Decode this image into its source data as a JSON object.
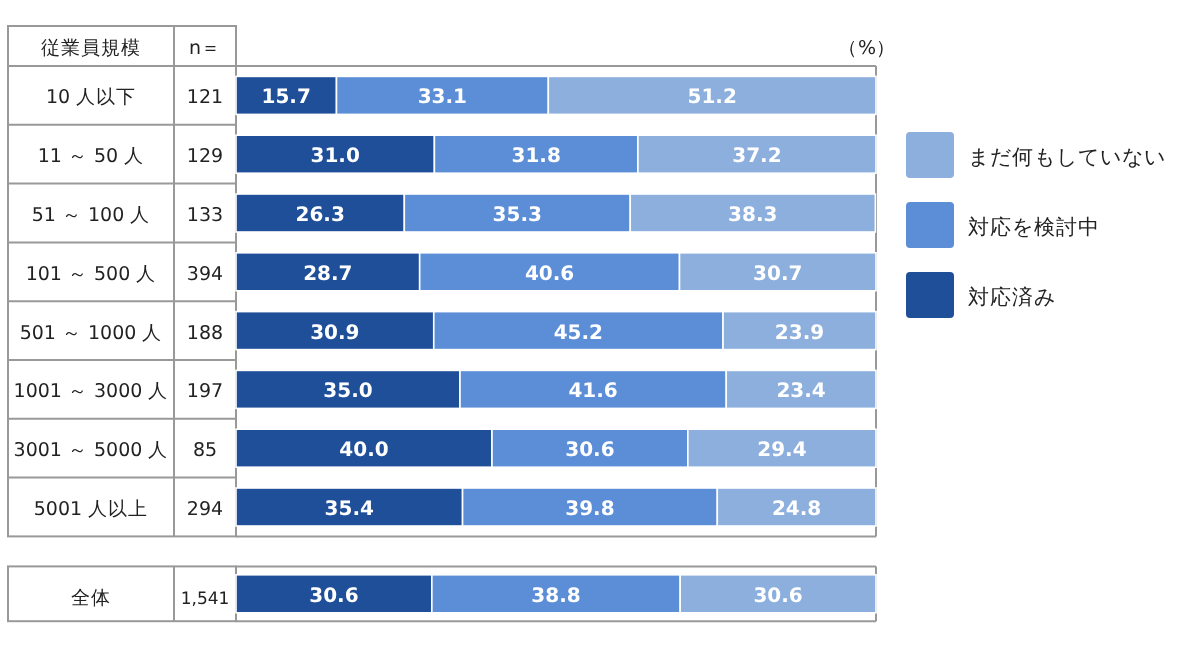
{
  "chart_data": {
    "type": "bar",
    "orientation": "horizontal",
    "stacked": true,
    "legend": "right",
    "xlim": [
      0,
      100
    ],
    "tick_labels": "y",
    "categories": [
      "10 人以下",
      "11 ～ 50 人",
      "51 ～ 100 人",
      "101 ～ 500 人",
      "501 ～ 1000 人",
      "1001 ～ 3000 人",
      "3001 ～ 5000 人",
      "5001 人以上",
      "全体"
    ],
    "series": [
      {
        "name": "対応済み",
        "color": "#1f4f99",
        "values": [
          15.7,
          31.0,
          26.3,
          28.7,
          30.9,
          35.0,
          40.0,
          35.4,
          30.6
        ],
        "value_labels": [
          "15.7",
          "31.0",
          "26.3",
          "28.7",
          "30.9",
          "35.0",
          "40.0",
          "35.4",
          "30.6"
        ]
      },
      {
        "name": "対応を検討中",
        "color": "#5b8ed6",
        "values": [
          33.1,
          31.8,
          35.3,
          40.6,
          45.2,
          41.6,
          30.6,
          39.8,
          38.8
        ],
        "value_labels": [
          "33.1",
          "31.8",
          "35.3",
          "40.6",
          "45.2",
          "41.6",
          "30.6",
          "39.8",
          "38.8"
        ]
      },
      {
        "name": "まだ何もしていない",
        "color": "#8cafdd",
        "values": [
          51.2,
          37.2,
          38.3,
          30.7,
          23.9,
          23.4,
          29.4,
          24.8,
          30.6
        ],
        "value_labels": [
          "51.2",
          "37.2",
          "38.3",
          "30.7",
          "23.9",
          "23.4",
          "29.4",
          "24.8",
          "30.6"
        ]
      }
    ],
    "annotations": [
      "従業員規模",
      "n＝",
      "（%）",
      "121",
      "129",
      "133",
      "394",
      "188",
      "197",
      "85",
      "294",
      "1,541"
    ]
  }
}
